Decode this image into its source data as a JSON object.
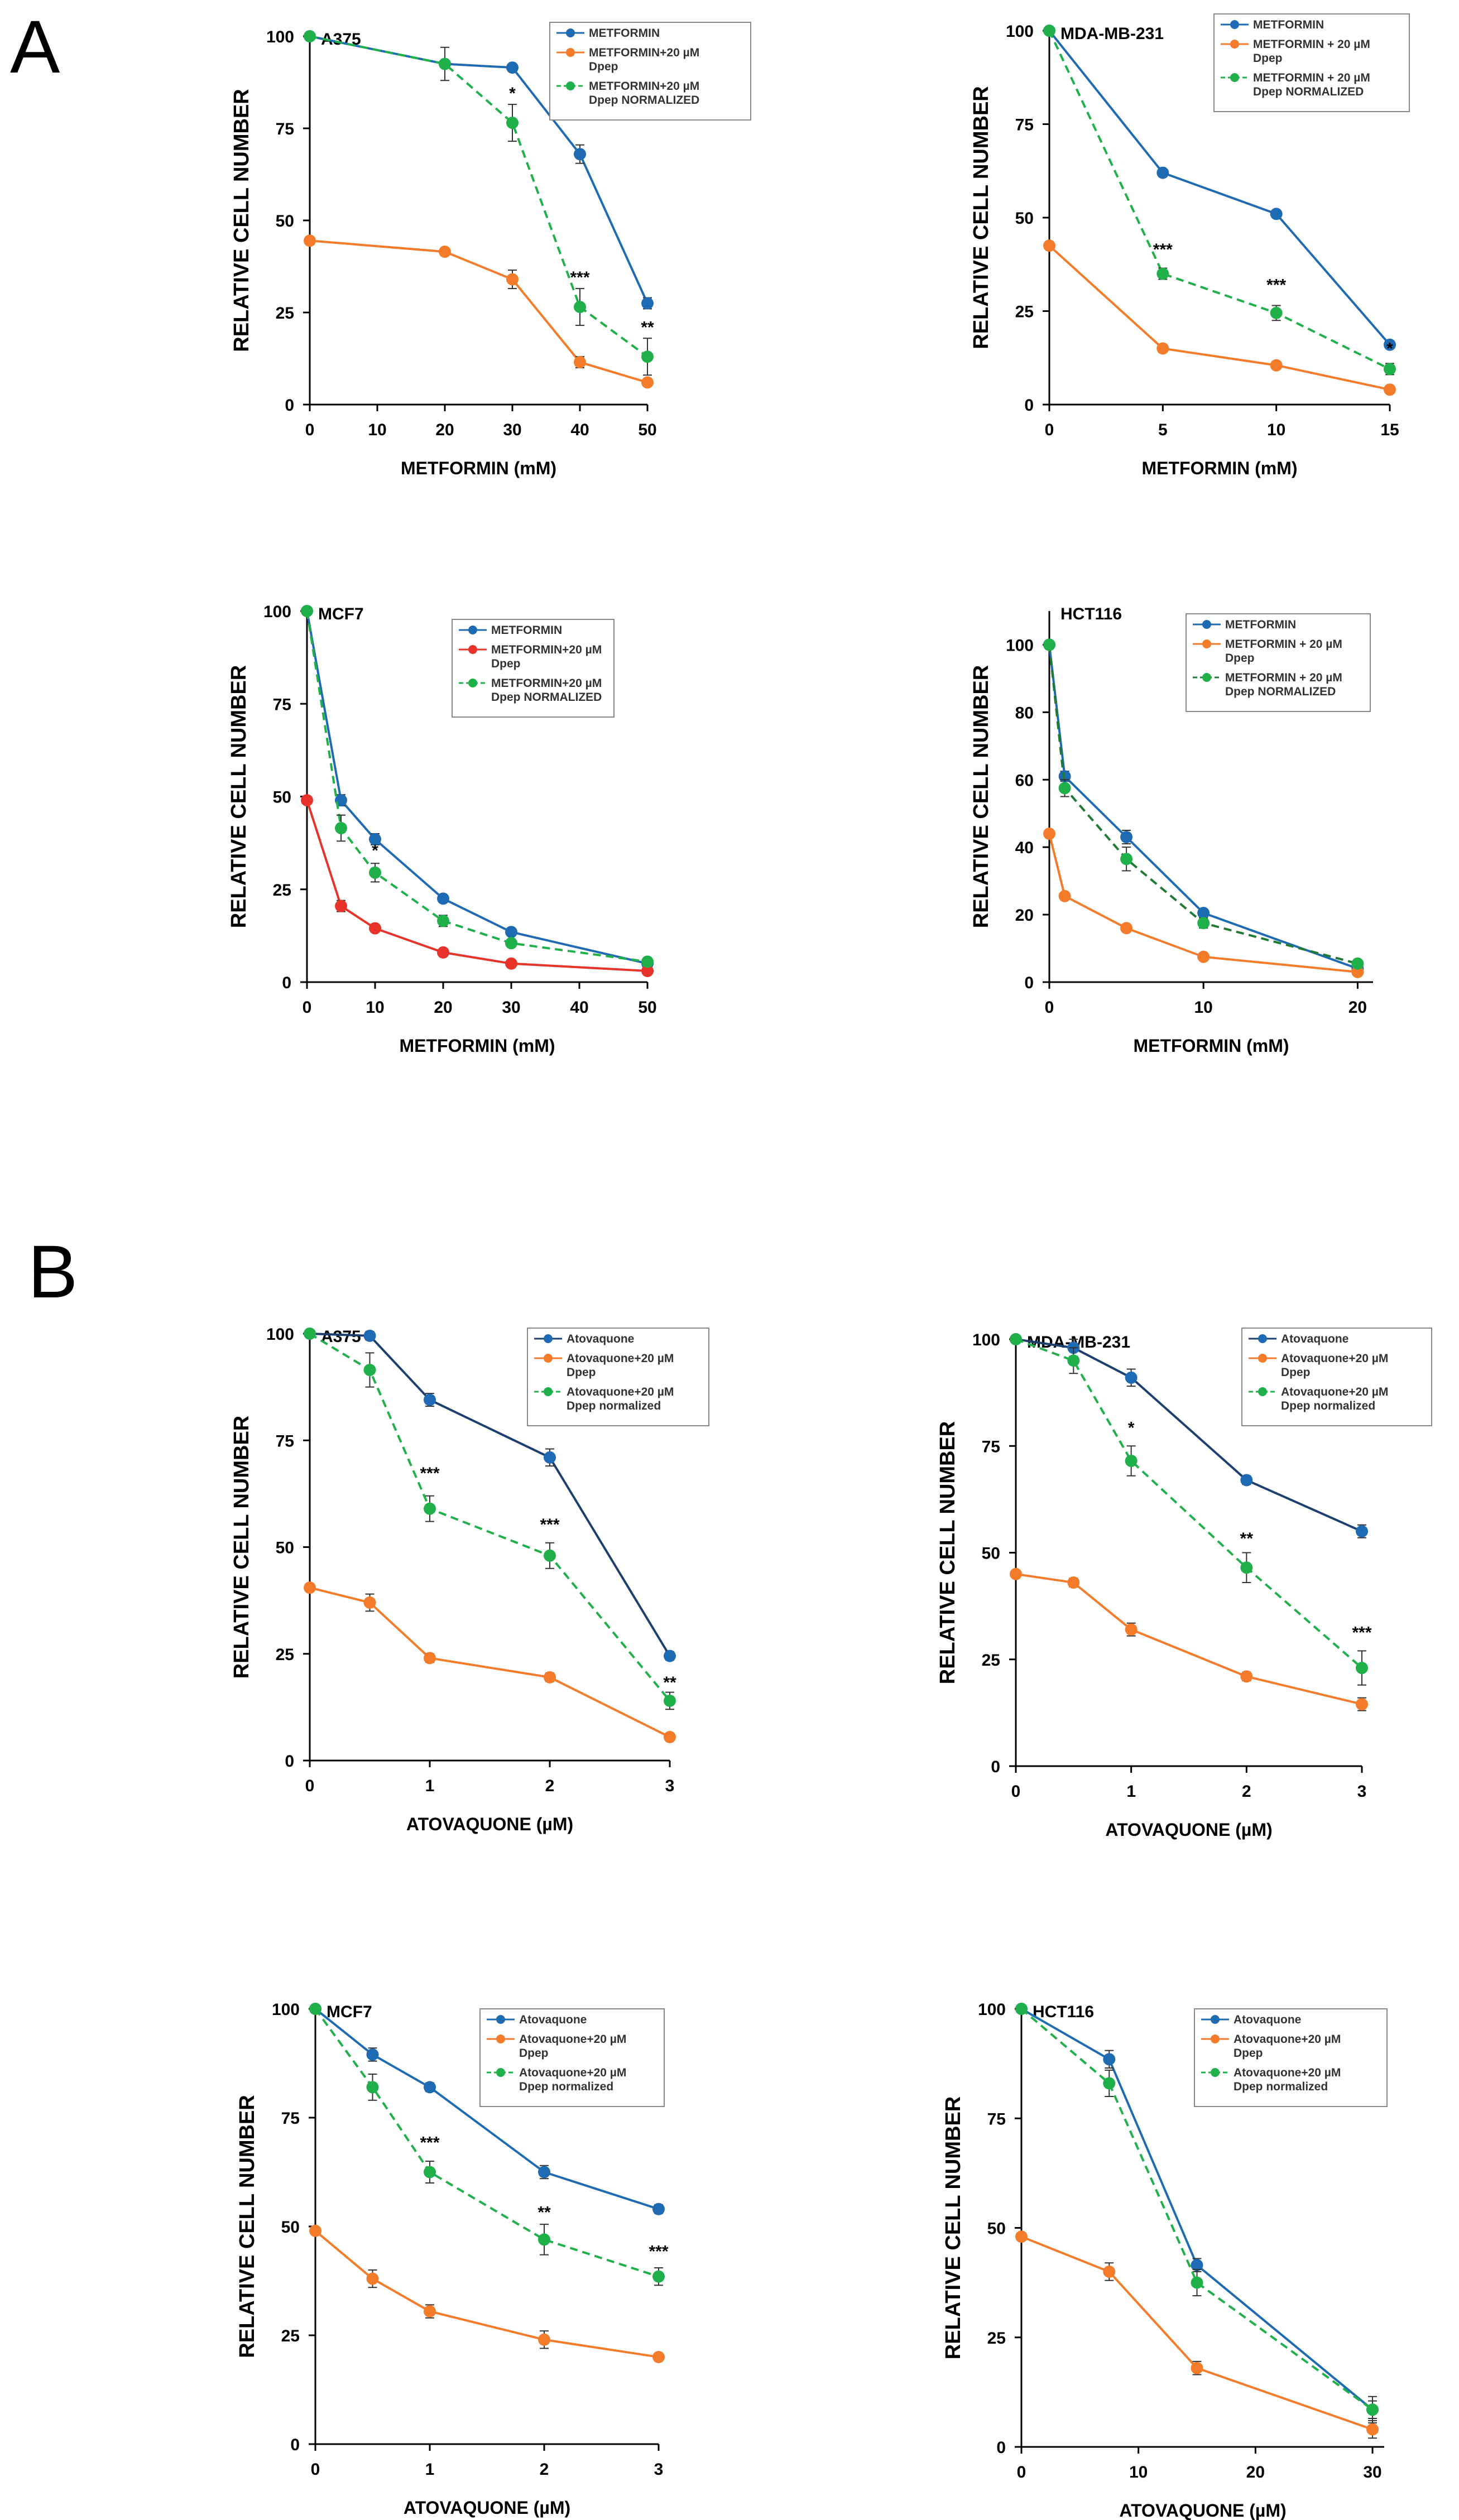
{
  "panel_labels": [
    "A",
    "B"
  ],
  "legend_colors": {
    "blue": "#1f6bb3",
    "orange": "#f47b2a",
    "red": "#e8332b",
    "green": "#1fb04a",
    "dark_green": "#1f7a33",
    "navy": "#1b3f6e"
  },
  "chart_data": [
    {
      "type": "line",
      "title": "A375",
      "xlabel": "METFORMIN (mM)",
      "ylabel": "RELATIVE CELL NUMBER",
      "xlim": [
        0,
        50
      ],
      "xticks": [
        0,
        10,
        20,
        30,
        40,
        50
      ],
      "ylim": [
        0,
        100
      ],
      "yticks": [
        0,
        25,
        50,
        75,
        100
      ],
      "series": [
        {
          "name": "METFORMIN",
          "legend": [
            "METFORMIN"
          ],
          "color": "#1f6bb3",
          "dashed": false,
          "x": [
            0,
            20,
            30,
            40,
            50
          ],
          "values": [
            100,
            92.5,
            91.5,
            68,
            27.5
          ],
          "err": [
            0,
            0,
            1,
            2.5,
            1.5
          ]
        },
        {
          "name": "METFORMIN+20 µM Dpep",
          "legend": [
            "METFORMIN+20 µM",
            "Dpep"
          ],
          "color": "#f47b2a",
          "dashed": false,
          "x": [
            0,
            20,
            30,
            40,
            50
          ],
          "values": [
            44.5,
            41.5,
            34,
            11.5,
            6
          ],
          "err": [
            0,
            1,
            2.5,
            1.5,
            1
          ]
        },
        {
          "name": "METFORMIN+20 µM Dpep NORMALIZED",
          "legend": [
            "METFORMIN+20 µM",
            "Dpep NORMALIZED"
          ],
          "color": "#1fb04a",
          "dashed": true,
          "x": [
            0,
            20,
            30,
            40,
            50
          ],
          "values": [
            100,
            92.5,
            76.5,
            26.5,
            13
          ],
          "err": [
            0,
            4.5,
            5,
            5,
            5
          ]
        }
      ],
      "significance": [
        {
          "x": 30,
          "y": 83,
          "label": "*"
        },
        {
          "x": 40,
          "y": 33,
          "label": "***"
        },
        {
          "x": 50,
          "y": 19.5,
          "label": "**"
        }
      ]
    },
    {
      "type": "line",
      "title": "MDA-MB-231",
      "xlabel": "METFORMIN (mM)",
      "ylabel": "RELATIVE CELL NUMBER",
      "xlim": [
        0,
        15
      ],
      "xticks": [
        0,
        5,
        10,
        15
      ],
      "ylim": [
        0,
        100
      ],
      "yticks": [
        0,
        25,
        50,
        75,
        100
      ],
      "series": [
        {
          "name": "METFORMIN",
          "legend": [
            "METFORMIN"
          ],
          "color": "#1f6bb3",
          "dashed": false,
          "x": [
            0,
            5,
            10,
            15
          ],
          "values": [
            100,
            62,
            51,
            16
          ],
          "err": [
            0,
            1,
            1,
            1
          ]
        },
        {
          "name": "METFORMIN + 20 µM Dpep",
          "legend": [
            "METFORMIN + 20 µM",
            "Dpep"
          ],
          "color": "#f47b2a",
          "dashed": false,
          "x": [
            0,
            5,
            10,
            15
          ],
          "values": [
            42.5,
            15,
            10.5,
            4
          ],
          "err": [
            0,
            1,
            1,
            1
          ]
        },
        {
          "name": "METFORMIN + 20 µM Dpep NORMALIZED",
          "legend": [
            "METFORMIN + 20 µM",
            "Dpep NORMALIZED"
          ],
          "color": "#1fb04a",
          "dashed": true,
          "x": [
            0,
            5,
            10,
            15
          ],
          "values": [
            100,
            35,
            24.5,
            9.5
          ],
          "err": [
            0,
            1.5,
            2,
            1.5
          ]
        }
      ],
      "significance": [
        {
          "x": 5,
          "y": 40,
          "label": "***"
        },
        {
          "x": 10,
          "y": 30.5,
          "label": "***"
        },
        {
          "x": 15,
          "y": 13.5,
          "label": "*"
        }
      ]
    },
    {
      "type": "line",
      "title": "MCF7",
      "xlabel": "METFORMIN (mM)",
      "ylabel": "RELATIVE CELL NUMBER",
      "xlim": [
        0,
        50
      ],
      "xticks": [
        0,
        10,
        20,
        30,
        40,
        50
      ],
      "ylim": [
        0,
        100
      ],
      "yticks": [
        0,
        25,
        50,
        75,
        100
      ],
      "series": [
        {
          "name": "METFORMIN",
          "legend": [
            "METFORMIN"
          ],
          "color": "#1f6bb3",
          "dashed": false,
          "x": [
            0,
            5,
            10,
            20,
            30,
            50
          ],
          "values": [
            100,
            49,
            38.5,
            22.5,
            13.5,
            5
          ],
          "err": [
            0,
            1.5,
            1.5,
            1,
            1,
            0.8
          ]
        },
        {
          "name": "METFORMIN+20 µM Dpep",
          "legend": [
            "METFORMIN+20 µM",
            "Dpep"
          ],
          "color": "#e8332b",
          "dashed": false,
          "x": [
            0,
            5,
            10,
            20,
            30,
            50
          ],
          "values": [
            49,
            20.5,
            14.5,
            8,
            5,
            3
          ],
          "err": [
            0,
            1.5,
            1,
            0.8,
            0.6,
            0.5
          ]
        },
        {
          "name": "METFORMIN+20 µM Dpep NORMALIZED",
          "legend": [
            "METFORMIN+20 µM",
            "Dpep NORMALIZED"
          ],
          "color": "#1fb04a",
          "dashed": true,
          "x": [
            0,
            5,
            10,
            20,
            30,
            50
          ],
          "values": [
            100,
            41.5,
            29.5,
            16.5,
            10.5,
            5.5
          ],
          "err": [
            0,
            3.5,
            2.5,
            1.5,
            1,
            0.8
          ]
        }
      ],
      "significance": [
        {
          "x": 10,
          "y": 34,
          "label": "*"
        }
      ]
    },
    {
      "type": "line",
      "title": "HCT116",
      "xlabel": "METFORMIN (mM)",
      "ylabel": "RELATIVE CELL NUMBER",
      "xlim": [
        0,
        21
      ],
      "xticks": [
        0,
        10,
        20
      ],
      "ylim": [
        0,
        110
      ],
      "yticks": [
        0,
        20,
        40,
        60,
        80,
        100
      ],
      "series": [
        {
          "name": "METFORMIN",
          "legend": [
            "METFORMIN"
          ],
          "color": "#1f6bb3",
          "dashed": false,
          "x": [
            0,
            1,
            5,
            10,
            20
          ],
          "values": [
            100,
            61,
            43,
            20.5,
            4
          ],
          "err": [
            0,
            1.5,
            2,
            1,
            0.5
          ]
        },
        {
          "name": "METFORMIN + 20 µM Dpep",
          "legend": [
            "METFORMIN + 20 µM",
            "Dpep"
          ],
          "color": "#f47b2a",
          "dashed": false,
          "x": [
            0,
            1,
            5,
            10,
            20
          ],
          "values": [
            44,
            25.5,
            16,
            7.5,
            3
          ],
          "err": [
            0,
            1,
            1,
            0.8,
            0.5
          ]
        },
        {
          "name": "METFORMIN + 20 µM Dpep NORMALIZED",
          "legend": [
            "METFORMIN + 20 µM",
            "Dpep NORMALIZED"
          ],
          "color": "#1fb04a",
          "dashed": true,
          "dash_color": "#1f7a33",
          "x": [
            0,
            1,
            5,
            10,
            20
          ],
          "values": [
            100,
            57.5,
            36.5,
            17.5,
            5.5
          ],
          "err": [
            0,
            2.5,
            3.5,
            1.5,
            0.8
          ]
        }
      ],
      "significance": []
    },
    {
      "type": "line",
      "title": "A375",
      "xlabel": "ATOVAQUONE (µM)",
      "ylabel": "RELATIVE CELL NUMBER",
      "xlim": [
        0,
        3
      ],
      "xticks": [
        0,
        1,
        2,
        3
      ],
      "ylim": [
        0,
        100
      ],
      "yticks": [
        0,
        25,
        50,
        75,
        100
      ],
      "series": [
        {
          "name": "Atovaquone",
          "legend": [
            "Atovaquone"
          ],
          "color": "#1b3f6e",
          "marker_color": "#1f6bb3",
          "dashed": false,
          "x": [
            0,
            0.5,
            1,
            2,
            3
          ],
          "values": [
            100,
            99.5,
            84.5,
            71,
            24.5
          ],
          "err": [
            0,
            1,
            1.5,
            2,
            1
          ]
        },
        {
          "name": "Atovaquone+20 µM Dpep",
          "legend": [
            "Atovaquone+20 µM",
            "Dpep"
          ],
          "color": "#f47b2a",
          "dashed": false,
          "x": [
            0,
            0.5,
            1,
            2,
            3
          ],
          "values": [
            40.5,
            37,
            24,
            19.5,
            5.5
          ],
          "err": [
            0,
            2,
            1,
            1,
            0.8
          ]
        },
        {
          "name": "Atovaquone+20 µM Dpep normalized",
          "legend": [
            "Atovaquone+20 µM",
            "Dpep normalized"
          ],
          "color": "#1fb04a",
          "dashed": true,
          "x": [
            0,
            0.5,
            1,
            2,
            3
          ],
          "values": [
            100,
            91.5,
            59,
            48,
            14
          ],
          "err": [
            0,
            4,
            3,
            3,
            2
          ]
        }
      ],
      "significance": [
        {
          "x": 1,
          "y": 66,
          "label": "***"
        },
        {
          "x": 2,
          "y": 54,
          "label": "***"
        },
        {
          "x": 3,
          "y": 17,
          "label": "**"
        }
      ]
    },
    {
      "type": "line",
      "title": "MDA-MB-231",
      "xlabel": "ATOVAQUONE (µM)",
      "ylabel": "RELATIVE CELL NUMBER",
      "xlim": [
        0,
        3
      ],
      "xticks": [
        0,
        1,
        2,
        3
      ],
      "ylim": [
        0,
        100
      ],
      "yticks": [
        0,
        25,
        50,
        75,
        100
      ],
      "series": [
        {
          "name": "Atovaquone",
          "legend": [
            "Atovaquone"
          ],
          "color": "#1b3f6e",
          "marker_color": "#1f6bb3",
          "dashed": false,
          "x": [
            0,
            0.5,
            1,
            2,
            3
          ],
          "values": [
            100,
            98,
            91,
            67,
            55
          ],
          "err": [
            0,
            2,
            2,
            1,
            1.5
          ]
        },
        {
          "name": "Atovaquone+20 µM Dpep",
          "legend": [
            "Atovaquone+20 µM",
            "Dpep"
          ],
          "color": "#f47b2a",
          "dashed": false,
          "x": [
            0,
            0.5,
            1,
            2,
            3
          ],
          "values": [
            45,
            43,
            32,
            21,
            14.5
          ],
          "err": [
            0,
            1,
            1.5,
            1,
            1.5
          ]
        },
        {
          "name": "Atovaquone+20 µM Dpep normalized",
          "legend": [
            "Atovaquone+20 µM",
            "Dpep normalized"
          ],
          "color": "#1fb04a",
          "dashed": true,
          "x": [
            0,
            0.5,
            1,
            2,
            3
          ],
          "values": [
            100,
            95,
            71.5,
            46.5,
            23
          ],
          "err": [
            0,
            3,
            3.5,
            3.5,
            4
          ]
        }
      ],
      "significance": [
        {
          "x": 1,
          "y": 78,
          "label": "*"
        },
        {
          "x": 2,
          "y": 52,
          "label": "**"
        },
        {
          "x": 3,
          "y": 30,
          "label": "***"
        }
      ]
    },
    {
      "type": "line",
      "title": "MCF7",
      "xlabel": "ATOVAQUONE (µM)",
      "ylabel": "RELATIVE CELL NUMBER",
      "xlim": [
        0,
        3
      ],
      "xticks": [
        0,
        1,
        2,
        3
      ],
      "ylim": [
        0,
        100
      ],
      "yticks": [
        0,
        25,
        50,
        75,
        100
      ],
      "series": [
        {
          "name": "Atovaquone",
          "legend": [
            "Atovaquone"
          ],
          "color": "#1f6bb3",
          "dashed": false,
          "x": [
            0,
            0.5,
            1,
            2,
            3
          ],
          "values": [
            100,
            89.5,
            82,
            62.5,
            54
          ],
          "err": [
            0,
            1.5,
            1,
            1.5,
            1
          ]
        },
        {
          "name": "Atovaquone+20 µM Dpep",
          "legend": [
            "Atovaquone+20 µM",
            "Dpep"
          ],
          "color": "#f47b2a",
          "dashed": false,
          "x": [
            0,
            0.5,
            1,
            2,
            3
          ],
          "values": [
            49,
            38,
            30.5,
            24,
            20
          ],
          "err": [
            0,
            2,
            1.5,
            2,
            0.8
          ]
        },
        {
          "name": "Atovaquone+20 µM Dpep normalized",
          "legend": [
            "Atovaquone+20 µM",
            "Dpep normalized"
          ],
          "color": "#1fb04a",
          "dashed": true,
          "x": [
            0,
            0.5,
            1,
            2,
            3
          ],
          "values": [
            100,
            82,
            62.5,
            47,
            38.5
          ],
          "err": [
            0,
            3,
            2.5,
            3.5,
            2
          ]
        }
      ],
      "significance": [
        {
          "x": 1,
          "y": 68,
          "label": "***"
        },
        {
          "x": 2,
          "y": 52,
          "label": "**"
        },
        {
          "x": 3,
          "y": 43,
          "label": "***"
        }
      ]
    },
    {
      "type": "line",
      "title": "HCT116",
      "xlabel": "ATOVAQUONE (µM)",
      "ylabel": "RELATIVE CELL NUMBER",
      "xlim": [
        0,
        31
      ],
      "xticks": [
        0,
        10,
        20,
        30
      ],
      "ylim": [
        0,
        100
      ],
      "yticks": [
        0,
        25,
        50,
        75,
        100
      ],
      "series": [
        {
          "name": "Atovaquone",
          "legend": [
            "Atovaquone"
          ],
          "color": "#1f6bb3",
          "dashed": false,
          "x": [
            0,
            7.5,
            15,
            30
          ],
          "values": [
            100,
            88.5,
            41.5,
            8.5
          ],
          "err": [
            0,
            2,
            1.5,
            2
          ]
        },
        {
          "name": "Atovaquone+20 µM Dpep",
          "legend": [
            "Atovaquone+20 µM",
            "Dpep"
          ],
          "color": "#f47b2a",
          "dashed": false,
          "x": [
            0,
            7.5,
            15,
            30
          ],
          "values": [
            48,
            40,
            18,
            4
          ],
          "err": [
            0,
            2,
            1.5,
            2
          ]
        },
        {
          "name": "Atovaquone+20 µM Dpep normalized",
          "legend": [
            "Atovaquone+20 µM",
            "Dpep normalized"
          ],
          "color": "#1fb04a",
          "dashed": true,
          "x": [
            0,
            7.5,
            15,
            30
          ],
          "values": [
            100,
            83,
            37.5,
            8.5
          ],
          "err": [
            0,
            3,
            3,
            3
          ]
        }
      ],
      "significance": []
    }
  ]
}
